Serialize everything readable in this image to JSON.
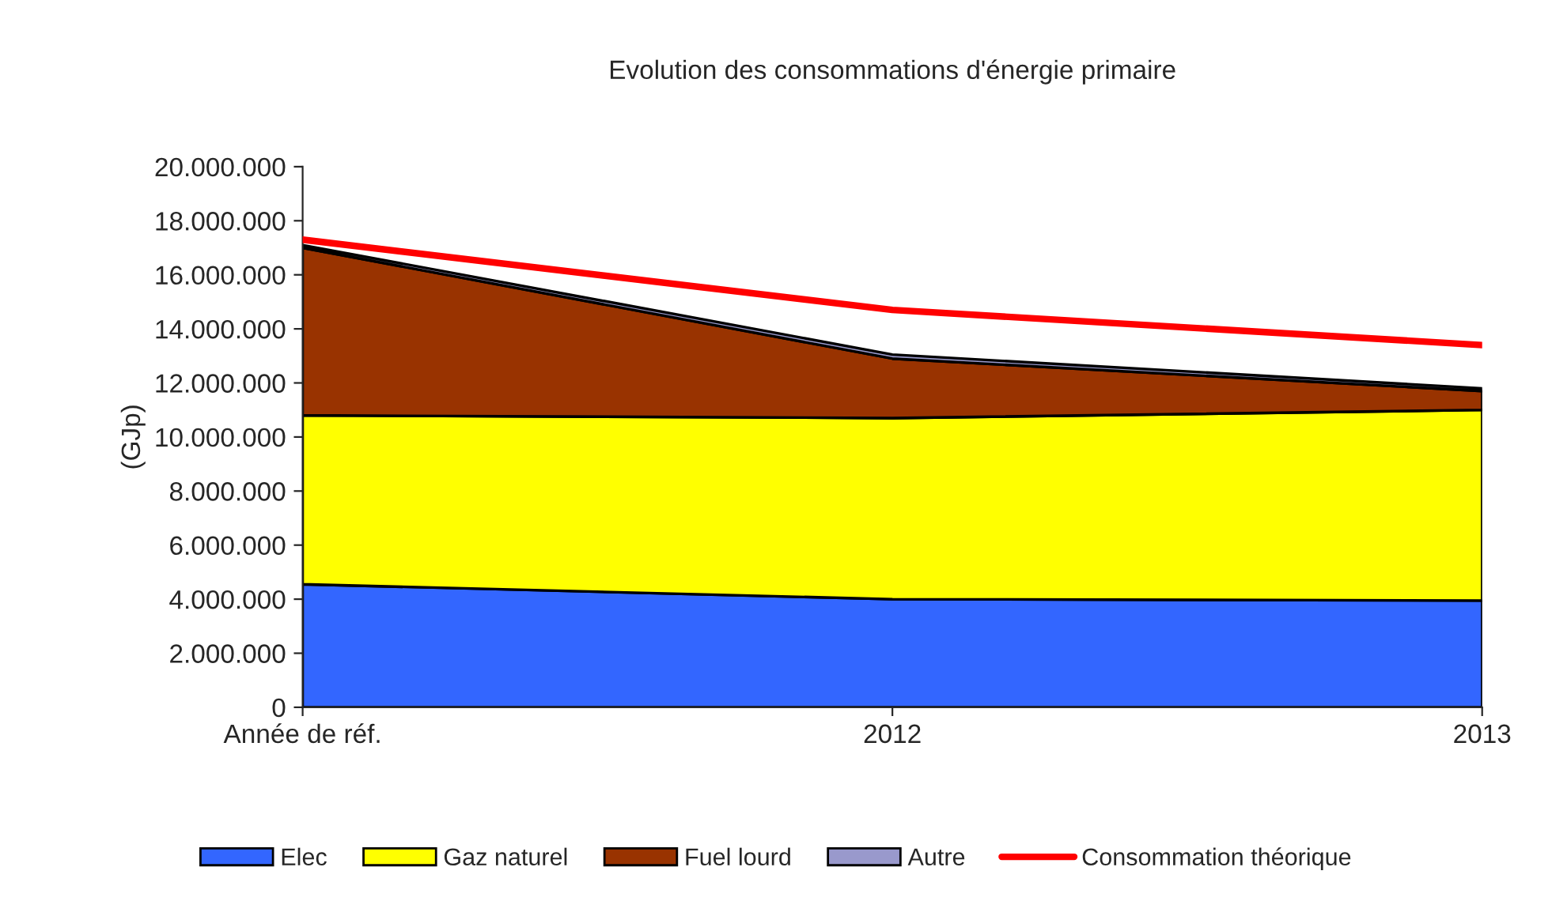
{
  "chart_data": {
    "type": "area",
    "stacked": true,
    "title": "Evolution des consommations d'énergie primaire",
    "ylabel": "(GJp)",
    "categories": [
      "Année de réf.",
      "2012",
      "2013"
    ],
    "series": [
      {
        "name": "Elec",
        "color": "#3366ff",
        "values": [
          4550000,
          4000000,
          3950000
        ]
      },
      {
        "name": "Gaz naturel",
        "color": "#ffff00",
        "values": [
          6250000,
          6700000,
          7050000
        ]
      },
      {
        "name": "Fuel lourd",
        "color": "#993300",
        "values": [
          6200000,
          2200000,
          700000
        ]
      },
      {
        "name": "Autre",
        "color": "#9999cc",
        "values": [
          100000,
          150000,
          100000
        ]
      },
      {
        "name": "Consommation théorique",
        "type": "line",
        "color": "#ff0000",
        "values": [
          17300000,
          14700000,
          13400000
        ]
      }
    ],
    "ylim": [
      0,
      20000000
    ],
    "yticks": [
      {
        "value": 0,
        "label": "0"
      },
      {
        "value": 2000000,
        "label": "2.000.000"
      },
      {
        "value": 4000000,
        "label": "4.000.000"
      },
      {
        "value": 6000000,
        "label": "6.000.000"
      },
      {
        "value": 8000000,
        "label": "8.000.000"
      },
      {
        "value": 10000000,
        "label": "10.000.000"
      },
      {
        "value": 12000000,
        "label": "12.000.000"
      },
      {
        "value": 14000000,
        "label": "14.000.000"
      },
      {
        "value": 16000000,
        "label": "16.000.000"
      },
      {
        "value": 18000000,
        "label": "18.000.000"
      },
      {
        "value": 20000000,
        "label": "20.000.000"
      }
    ],
    "grid": false,
    "legend": "bottom"
  }
}
